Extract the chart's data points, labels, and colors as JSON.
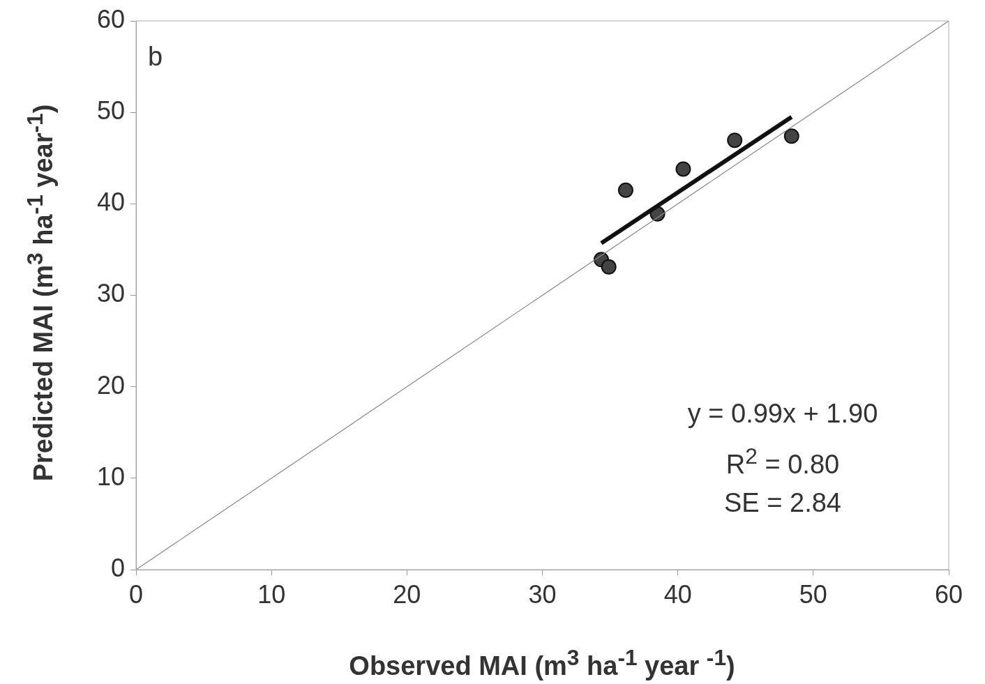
{
  "chart_data": {
    "type": "scatter",
    "xlabel": "Observed MAI (m$^{3}$ ha$^{-1}$ year $^{-1}$)",
    "ylabel": "Predicted MAI (m$^{3}$ ha$^{-1}$ year$^{-1}$)",
    "xlim": [
      0,
      60
    ],
    "ylim": [
      0,
      60
    ],
    "xticks": [
      0,
      10,
      20,
      30,
      40,
      50,
      60
    ],
    "yticks": [
      0,
      10,
      20,
      30,
      40,
      50,
      60
    ],
    "grid": false,
    "legend": false,
    "marker": "circle",
    "series": [
      {
        "type": "line",
        "marker": "none",
        "color": "#888888",
        "x": [
          0,
          60
        ],
        "values": [
          0,
          60
        ]
      },
      {
        "type": "line",
        "marker": "none",
        "color": "#111111",
        "x": [
          34.35,
          48.4
        ],
        "values": [
          35.7,
          49.5
        ]
      },
      {
        "color": "#444444",
        "x": [
          34.35,
          34.9,
          36.15,
          38.5,
          40.4,
          44.2,
          48.4
        ],
        "values": [
          33.9,
          33.1,
          41.5,
          38.9,
          43.8,
          46.95,
          47.4
        ]
      }
    ],
    "annotations": [
      "b",
      "y = 0.99x + 1.90",
      "R$^{2}$ = 0.80",
      "SE = 2.84"
    ]
  }
}
